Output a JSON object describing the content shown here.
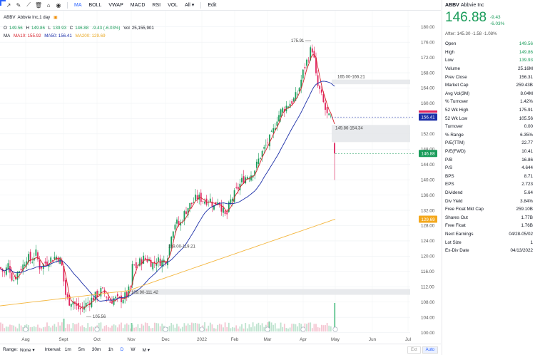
{
  "toolbar": {
    "indicators": [
      "MA",
      "BOLL",
      "VWAP",
      "MACD",
      "RSI",
      "VOL"
    ],
    "all_label": "All",
    "edit_label": "Edit",
    "active": "MA"
  },
  "legend": {
    "symbol": "ABBV",
    "desc": "Abbvie Inc,1 day",
    "open_label": "O",
    "open": "149.56",
    "high_label": "H",
    "high": "149.86",
    "low_label": "L",
    "low": "139.93",
    "close_label": "C",
    "close": "146.88",
    "change": "-9.43 (-6.03%)",
    "vol_label": "Vol",
    "vol": "25,155,901",
    "ma_label": "MA",
    "ma10": "MA10: 155.92",
    "ma50": "MA50: 156.41",
    "ma200": "MA200: 129.69"
  },
  "chart_data": {
    "type": "candlestick",
    "x_ticks": [
      "Aug",
      "Sept",
      "Oct",
      "Nov",
      "Dec",
      "2022",
      "Feb",
      "Mar",
      "Apr",
      "May",
      "Jun",
      "Jul"
    ],
    "y_ticks": [
      100,
      104,
      108,
      112,
      116,
      120,
      124,
      128,
      132,
      136,
      140,
      144,
      148,
      152,
      156,
      160,
      164,
      168,
      172,
      176,
      180
    ],
    "y_tick_labels": [
      "100.00",
      "104.00",
      "108.00",
      "112.00",
      "116.00",
      "120.00",
      "124.00",
      "128.00",
      "132.00",
      "136.00",
      "140.00",
      "144.00",
      "148.00",
      "152.00",
      "156.00",
      "160.00",
      "164.00",
      "168.00",
      "172.00",
      "176.00",
      "180.00"
    ],
    "ylim": [
      99,
      182
    ],
    "annotations": {
      "high": "175.91",
      "low": "105.56",
      "gap1": "165.00-166.21",
      "gap2": "149.86-154.34",
      "gap3": "119.00-119.21",
      "gap4": "109.90-111.42"
    },
    "price_labels": {
      "ma50": "156.41",
      "close": "146.88",
      "ma200": "129.69"
    },
    "colors": {
      "up": "#1a9c5a",
      "down": "#e0245e",
      "ma10": "#d6202a",
      "ma50": "#1c2fa8",
      "ma200": "#f4b740"
    }
  },
  "panel": {
    "symbol": "ABBV",
    "name": "Abbvie Inc",
    "price": "146.88",
    "change": "-9.43",
    "change_pct": "-6.03%",
    "after": "After: 145.30 -1.58 -1.08%",
    "rows": [
      {
        "k": "Open",
        "v": "149.56",
        "up": true
      },
      {
        "k": "High",
        "v": "149.86",
        "up": true
      },
      {
        "k": "Low",
        "v": "139.93",
        "up": true
      },
      {
        "k": "Volume",
        "v": "25.16M"
      },
      {
        "k": "Prev Close",
        "v": "156.31"
      },
      {
        "k": "Market Cap",
        "v": "259.43B"
      },
      {
        "k": "Avg Vol(3M)",
        "v": "8.04M"
      },
      {
        "k": "% Turnover",
        "v": "1.42%"
      },
      {
        "k": "52 Wk High",
        "v": "175.91"
      },
      {
        "k": "52 Wk Low",
        "v": "105.56"
      },
      {
        "k": "Turnover",
        "v": "0.00"
      },
      {
        "k": "% Range",
        "v": "6.35%"
      },
      {
        "k": "P/E(TTM)",
        "v": "22.77"
      },
      {
        "k": "P/E(FWD)",
        "v": "10.41"
      },
      {
        "k": "P/B",
        "v": "16.86"
      },
      {
        "k": "P/S",
        "v": "4.644"
      },
      {
        "k": "BPS",
        "v": "8.71"
      },
      {
        "k": "EPS",
        "v": "2.723"
      },
      {
        "k": "Dividend",
        "v": "5.64"
      },
      {
        "k": "Div Yield",
        "v": "3.84%"
      },
      {
        "k": "Free Float Mkt Cap",
        "v": "259.10B"
      },
      {
        "k": "Shares Out",
        "v": "1.77B"
      },
      {
        "k": "Free Float",
        "v": "1.76B"
      },
      {
        "k": "Next Earnings",
        "v": "04/28-05/02"
      },
      {
        "k": "Lot Size",
        "v": "1"
      },
      {
        "k": "Ex-Div Date",
        "v": "04/13/2022"
      }
    ]
  },
  "bottom": {
    "range_label": "Range:",
    "range_value": "None",
    "interval_label": "Interval:",
    "intervals": [
      "1m",
      "5m",
      "30m",
      "1h",
      "D",
      "W",
      "M"
    ],
    "active_interval": "D",
    "ext_label": "Ext",
    "auto_label": "Auto"
  }
}
